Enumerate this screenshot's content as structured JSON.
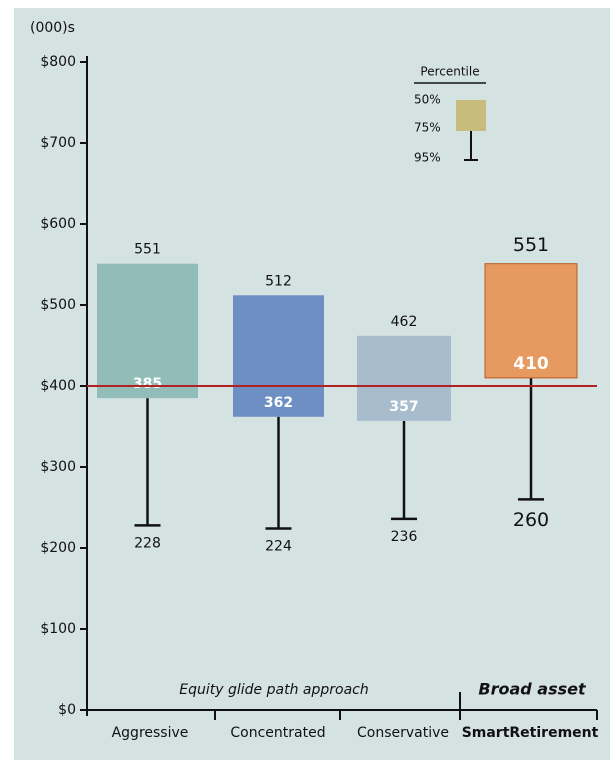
{
  "chart_data": {
    "type": "range_bar",
    "y_unit": "(000)s",
    "categories": [
      "Aggressive",
      "Concentrated",
      "Conservative",
      "SmartRetirement"
    ],
    "colors": [
      "#92bcb8",
      "#6e8fc3",
      "#a7bdcd",
      "#e79a5f"
    ],
    "series": [
      {
        "name": "50%",
        "values": [
          551,
          512,
          462,
          551
        ]
      },
      {
        "name": "75%",
        "values": [
          385,
          362,
          357,
          410
        ]
      },
      {
        "name": "95%",
        "values": [
          228,
          224,
          236,
          260
        ]
      }
    ],
    "legend_title": "Percentile",
    "legend_color": "#c8bc7c",
    "reference_line": {
      "value": 400,
      "color": "#b22222"
    },
    "groups": [
      {
        "label": "Equity glide path approach"
      },
      {
        "label": "Broad asset"
      }
    ],
    "ylim": [
      0,
      800
    ],
    "yticks": [
      {
        "value": 0,
        "label": "$0"
      },
      {
        "value": 100,
        "label": "$100"
      },
      {
        "value": 200,
        "label": "$200"
      },
      {
        "value": 300,
        "label": "$300"
      },
      {
        "value": 400,
        "label": "$400"
      },
      {
        "value": 500,
        "label": "$500"
      },
      {
        "value": 600,
        "label": "$600"
      },
      {
        "value": 700,
        "label": "$700"
      },
      {
        "value": 800,
        "label": "$800"
      }
    ]
  }
}
